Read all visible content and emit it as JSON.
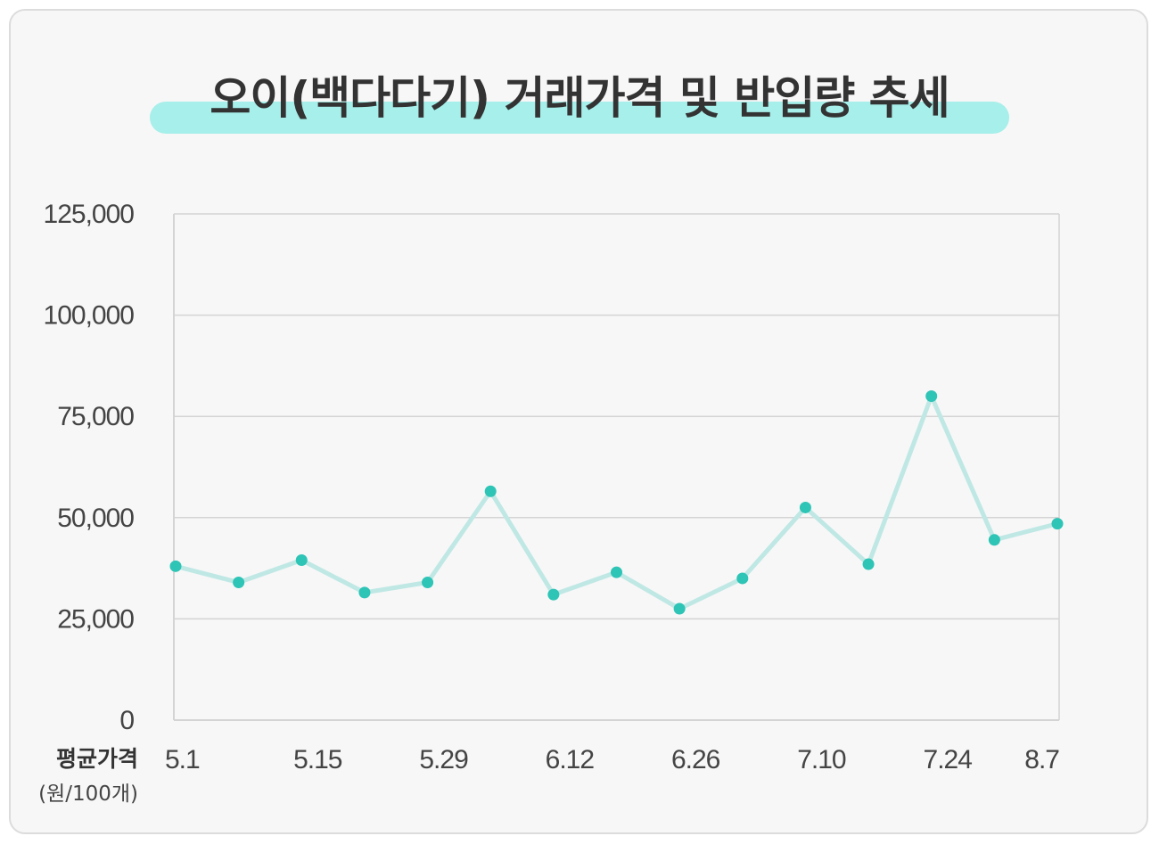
{
  "colors": {
    "line": "#bfe8e5",
    "point": "#2ec4b6",
    "grid": "#d4d4d4",
    "highlight": "#a6efea"
  },
  "chart_data": {
    "type": "line",
    "title": "오이(백다다기) 거래가격 및 반입량 추세",
    "ylabel": "평균가격",
    "yunit": "(원/100개)",
    "ylim": [
      0,
      125000
    ],
    "yticks": [
      0,
      25000,
      50000,
      75000,
      100000,
      125000
    ],
    "ytick_labels": [
      "0",
      "25,000",
      "50,000",
      "75,000",
      "100,000",
      "125,000"
    ],
    "xtick_labels": [
      "5.1",
      "5.15",
      "5.29",
      "6.12",
      "6.26",
      "7.10",
      "7.24",
      "8.7"
    ],
    "grid": true,
    "series": [
      {
        "values": [
          38000,
          34000,
          39500,
          31500,
          34000,
          56500,
          31000,
          36500,
          27500,
          35000,
          52500,
          38500,
          80000,
          44500,
          48500
        ]
      }
    ]
  }
}
